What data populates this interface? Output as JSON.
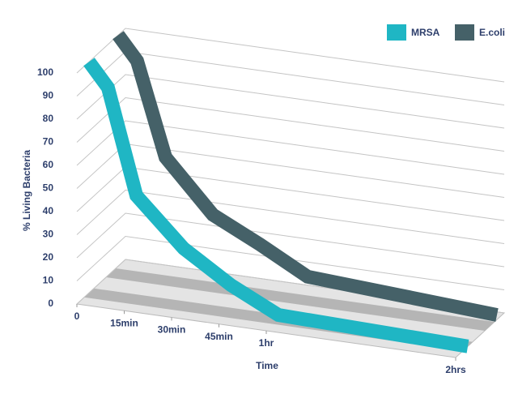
{
  "chart_data": {
    "type": "line",
    "title": null,
    "x_label": "Time",
    "y_label": "% Living Bacteria",
    "x": [
      0,
      6,
      15,
      30,
      45,
      60,
      120
    ],
    "series": [
      {
        "name": "MRSA",
        "color": "#1fb6c4",
        "values": [
          100,
          90,
          45,
          25,
          12,
          2,
          0
        ]
      },
      {
        "name": "E.coli",
        "color": "#456168",
        "values": [
          100,
          90,
          50,
          28,
          18,
          7,
          2
        ]
      }
    ],
    "xlim": [
      0,
      120
    ],
    "xticks": [
      0,
      {
        "value": 15,
        "label": "15min"
      },
      {
        "value": 30,
        "label": "30min"
      },
      {
        "value": 45,
        "label": "45min"
      },
      {
        "value": 60,
        "label": "1hr"
      },
      {
        "value": 120,
        "label": "2hrs"
      }
    ],
    "ylim": [
      0,
      100
    ],
    "yticks": [
      0,
      10,
      20,
      30,
      40,
      50,
      60,
      70,
      80,
      90,
      100
    ],
    "grid": true,
    "legend": "top-right"
  }
}
